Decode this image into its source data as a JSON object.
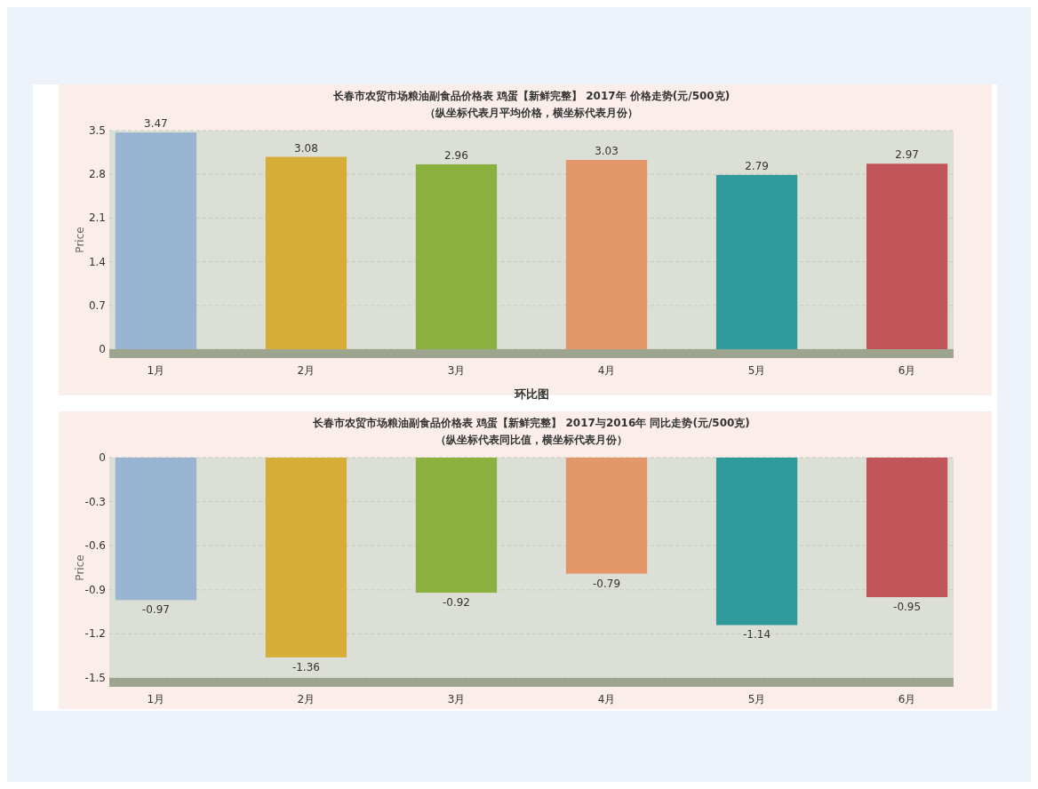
{
  "chart_data": [
    {
      "type": "bar",
      "title": "长春市农贸市场粮油副食品价格表 鸡蛋【新鲜完整】 2017年  价格走势(元/500克)",
      "subtitle": "（纵坐标代表月平均价格，横坐标代表月份）",
      "xlabel": "环比图",
      "ylabel": "Price",
      "categories": [
        "1月",
        "2月",
        "3月",
        "4月",
        "5月",
        "6月"
      ],
      "values": [
        3.47,
        3.08,
        2.96,
        3.03,
        2.79,
        2.97
      ],
      "colors": [
        "#98b4d0",
        "#d6ad38",
        "#8ab040",
        "#e2966a",
        "#2f9a9a",
        "#c2555a"
      ],
      "ylim": [
        0,
        3.5
      ],
      "yticks": [
        0,
        0.7,
        1.4,
        2.1,
        2.8,
        3.5
      ],
      "grid": "y",
      "data_labels": true
    },
    {
      "type": "bar",
      "title": "长春市农贸市场粮油副食品价格表 鸡蛋【新鲜完整】 2017与2016年  同比走势(元/500克)",
      "subtitle": "（纵坐标代表同比值，横坐标代表月份）",
      "ylabel": "Price",
      "categories": [
        "1月",
        "2月",
        "3月",
        "4月",
        "5月",
        "6月"
      ],
      "values": [
        -0.97,
        -1.36,
        -0.92,
        -0.79,
        -1.14,
        -0.95
      ],
      "colors": [
        "#98b4d0",
        "#d6ad38",
        "#8ab040",
        "#e2966a",
        "#2f9a9a",
        "#c2555a"
      ],
      "ylim": [
        -1.5,
        0
      ],
      "yticks": [
        -1.5,
        -1.2,
        -0.9,
        -0.6,
        -0.3,
        0
      ],
      "grid": "y",
      "data_labels": true
    }
  ]
}
